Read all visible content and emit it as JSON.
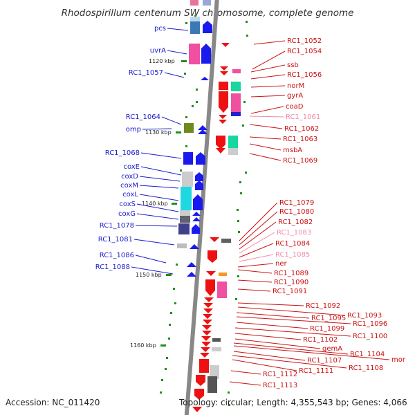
{
  "title": "Rhodospirillum centenum SW chromosome, complete genome",
  "accession": "Accession: NC_011420",
  "topology": "Topology: circular; Length: 4,355,543 bp; Genes: 4,066",
  "colors": {
    "backbone": "#888888",
    "left_label": "#1a1acc",
    "right_label": "#cc1111",
    "pseudo_label": "#f08aa6",
    "tick": "#1f8f1f"
  },
  "kbp_marks": [
    "1120 kbp",
    "1130 kbp",
    "1140 kbp",
    "1150 kbp",
    "1160 kbp"
  ],
  "left_genes": [
    "pcs",
    "uvrA",
    "RC1_1057",
    "RC1_1064",
    "omp",
    "RC1_1068",
    "coxE",
    "coxD",
    "coxM",
    "coxL",
    "coxS",
    "coxG",
    "RC1_1078",
    "RC1_1081",
    "RC1_1086",
    "RC1_1088"
  ],
  "right_genes": [
    "RC1_1052",
    "RC1_1054",
    "ssb",
    "RC1_1056",
    "norM",
    "gyrA",
    "coaD",
    "RC1_1061",
    "RC1_1062",
    "RC1_1063",
    "msbA",
    "RC1_1069",
    "RC1_1079",
    "RC1_1080",
    "RC1_1082",
    "RC1_1083",
    "RC1_1084",
    "RC1_1085",
    "ner",
    "RC1_1089",
    "RC1_1090",
    "RC1_1091",
    "RC1_1092",
    "RC1_1093",
    "RC1_1095",
    "RC1_1096",
    "RC1_1099",
    "RC1_1100",
    "RC1_1102",
    "gemA",
    "RC1_1104",
    "mor",
    "RC1_1107",
    "RC1_1108",
    "RC1_1111",
    "RC1_1112",
    "RC1_1113"
  ],
  "pseudo_genes": [
    "RC1_1061",
    "RC1_1083",
    "RC1_1085"
  ]
}
